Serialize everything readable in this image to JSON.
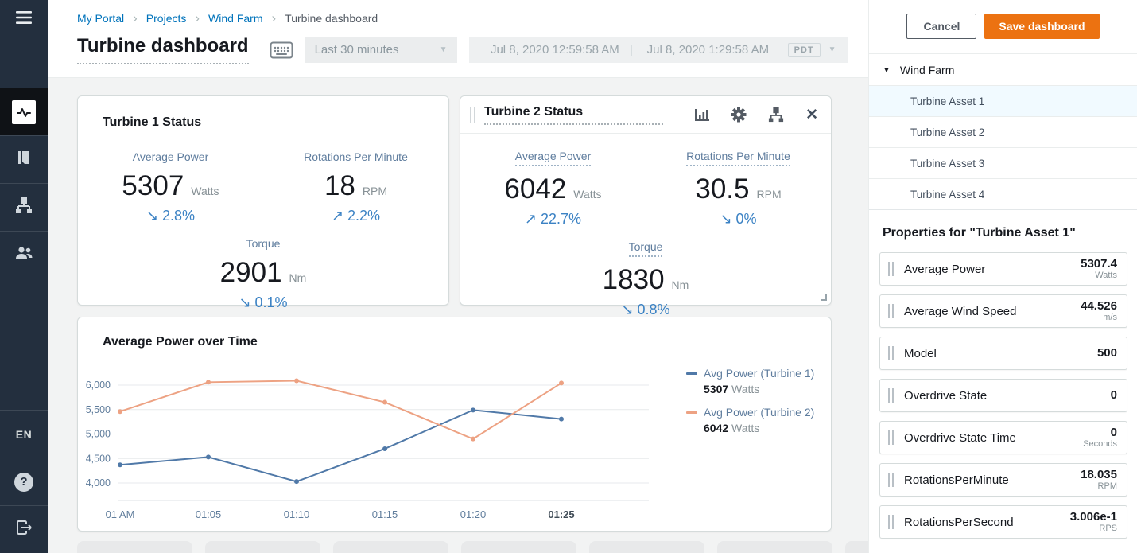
{
  "icons": {
    "breadcrumb_separator": "›",
    "dropdown": "▼",
    "tree_collapse": "▼",
    "close": "✕",
    "help": "?",
    "separator": "|"
  },
  "sidebar": {
    "language": "EN"
  },
  "breadcrumb": {
    "links": [
      "My Portal",
      "Projects",
      "Wind Farm"
    ],
    "current": "Turbine dashboard"
  },
  "header": {
    "title": "Turbine dashboard",
    "time_range": "Last 30 minutes",
    "start_time": "Jul 8, 2020 12:59:58 AM",
    "end_time": "Jul 8, 2020 1:29:58 AM",
    "timezone": "PDT"
  },
  "cards": [
    {
      "title": "Turbine 1 Status",
      "metrics": [
        {
          "label": "Average Power",
          "value": "5307",
          "unit": "Watts",
          "arrow": "↘",
          "trend": "2.8%"
        },
        {
          "label": "Rotations Per Minute",
          "value": "18",
          "unit": "RPM",
          "arrow": "↗",
          "trend": "2.2%"
        },
        {
          "label": "Torque",
          "value": "2901",
          "unit": "Nm",
          "arrow": "↘",
          "trend": "0.1%"
        }
      ]
    },
    {
      "title": "Turbine 2 Status",
      "metrics": [
        {
          "label": "Average Power",
          "value": "6042",
          "unit": "Watts",
          "arrow": "↗",
          "trend": "22.7%"
        },
        {
          "label": "Rotations Per Minute",
          "value": "30.5",
          "unit": "RPM",
          "arrow": "↘",
          "trend": "0%"
        },
        {
          "label": "Torque",
          "value": "1830",
          "unit": "Nm",
          "arrow": "↘",
          "trend": "0.8%"
        }
      ]
    }
  ],
  "chart_data": {
    "type": "line",
    "title": "Average Power over Time",
    "x": [
      "01 AM",
      "01:05",
      "01:10",
      "01:15",
      "01:20",
      "01:25"
    ],
    "series": [
      {
        "name": "Avg Power (Turbine 1)",
        "values": [
          4370,
          4530,
          4030,
          4700,
          5490,
          5307
        ],
        "current": "5307",
        "unit": "Watts",
        "color": "#5079a8"
      },
      {
        "name": "Avg Power (Turbine 2)",
        "values": [
          5460,
          6060,
          6090,
          5650,
          4900,
          6042
        ],
        "current": "6042",
        "unit": "Watts",
        "color": "#eda283"
      }
    ],
    "xlabel": "",
    "ylabel": "",
    "ylim": [
      3800,
      6300
    ],
    "yticks": [
      4000,
      4500,
      5000,
      5500,
      6000
    ],
    "grid": true,
    "legend_position": "right"
  },
  "panel": {
    "cancel_label": "Cancel",
    "save_label": "Save dashboard",
    "tree_root": "Wind Farm",
    "assets": [
      {
        "label": "Turbine Asset 1",
        "selected": true
      },
      {
        "label": "Turbine Asset 2",
        "selected": false
      },
      {
        "label": "Turbine Asset 3",
        "selected": false
      },
      {
        "label": "Turbine Asset 4",
        "selected": false
      }
    ],
    "properties_heading": "Properties for \"Turbine Asset 1\"",
    "properties": [
      {
        "name": "Average Power",
        "value": "5307.4",
        "unit": "Watts"
      },
      {
        "name": "Average Wind Speed",
        "value": "44.526",
        "unit": "m/s"
      },
      {
        "name": "Model",
        "value": "500",
        "unit": ""
      },
      {
        "name": "Overdrive State",
        "value": "0",
        "unit": ""
      },
      {
        "name": "Overdrive State Time",
        "value": "0",
        "unit": "Seconds"
      },
      {
        "name": "RotationsPerMinute",
        "value": "18.035",
        "unit": "RPM"
      },
      {
        "name": "RotationsPerSecond",
        "value": "3.006e-1",
        "unit": "RPS"
      }
    ]
  }
}
